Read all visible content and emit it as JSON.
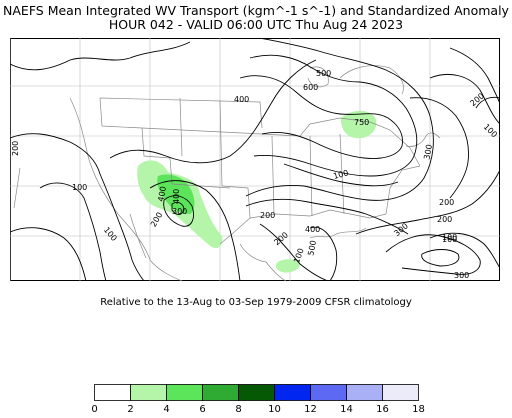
{
  "title_line1": "NAEFS Mean Integrated WV Transport (kgm^-1 s^-1) and Standardized Anomaly",
  "title_line2": "HOUR 042 - VALID 06:00 UTC Thu Aug 24 2023",
  "subtitle": "Relative to the 13-Aug to 03-Sep 1979-2009 CFSR climatology",
  "contour_labels": [
    "500",
    "600",
    "400",
    "200",
    "100",
    "400",
    "200",
    "100",
    "100",
    "750",
    "300",
    "200",
    "400",
    "200",
    "100",
    "100",
    "300",
    "200",
    "500",
    "100",
    "400",
    "200",
    "300",
    "200",
    "100",
    "300"
  ],
  "colorbar": {
    "ticks": [
      "0",
      "2",
      "4",
      "6",
      "8",
      "10",
      "12",
      "14",
      "16",
      "18"
    ],
    "colors": [
      "#ffffff",
      "#b4f5a9",
      "#5ce45a",
      "#2faa33",
      "#055905",
      "#0026f0",
      "#5d69f2",
      "#a9b0f5",
      "#ebebfa"
    ]
  },
  "anomaly_colors": {
    "light": "#b4f5a9",
    "medium": "#5ce45a",
    "dark": "#2faa33"
  }
}
